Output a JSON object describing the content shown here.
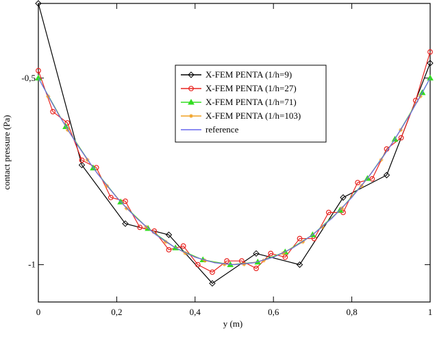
{
  "chart_data": {
    "type": "line",
    "xlabel": "y (m)",
    "ylabel": "contact pressure (Pa)",
    "xlim": [
      0,
      1
    ],
    "ylim": [
      -1.1,
      -0.3
    ],
    "xticks": [
      0,
      {
        "value": 0.2,
        "label": "0,2"
      },
      {
        "value": 0.4,
        "label": "0,4"
      },
      {
        "value": 0.6,
        "label": "0,6"
      },
      {
        "value": 0.8,
        "label": "0,8"
      },
      1
    ],
    "yticks": [
      {
        "value": -0.5,
        "label": "-0,5"
      },
      -1
    ],
    "legend": "upper center",
    "series": [
      {
        "name": "X-FEM PENTA (1/h=9)",
        "color": "#000000",
        "marker": "diamond",
        "x": [
          0,
          0.111,
          0.222,
          0.333,
          0.444,
          0.556,
          0.667,
          0.778,
          0.889,
          1
        ],
        "values": [
          -0.3,
          -0.733,
          -0.89,
          -0.92,
          -1.05,
          -0.97,
          -1.0,
          -0.82,
          -0.76,
          -0.46
        ]
      },
      {
        "name": "X-FEM PENTA (1/h=27)",
        "color": "#e8231f",
        "marker": "circle",
        "x": [
          0,
          0.037,
          0.074,
          0.111,
          0.148,
          0.185,
          0.222,
          0.259,
          0.296,
          0.333,
          0.37,
          0.407,
          0.444,
          0.481,
          0.519,
          0.556,
          0.593,
          0.63,
          0.667,
          0.704,
          0.741,
          0.778,
          0.815,
          0.852,
          0.889,
          0.926,
          0.963,
          1
        ],
        "values": [
          -0.48,
          -0.59,
          -0.62,
          -0.72,
          -0.74,
          -0.82,
          -0.83,
          -0.9,
          -0.91,
          -0.96,
          -0.95,
          -1.0,
          -1.02,
          -0.99,
          -0.99,
          -1.01,
          -0.97,
          -0.98,
          -0.93,
          -0.93,
          -0.86,
          -0.86,
          -0.78,
          -0.77,
          -0.69,
          -0.66,
          -0.56,
          -0.43
        ]
      },
      {
        "name": "X-FEM PENTA (1/h=71)",
        "color": "#33dd22",
        "marker": "triangle",
        "x": [
          0,
          0.07,
          0.14,
          0.21,
          0.28,
          0.35,
          0.42,
          0.49,
          0.56,
          0.63,
          0.7,
          0.77,
          0.84,
          0.91,
          0.98,
          1
        ],
        "values": [
          -0.5,
          -0.63,
          -0.741,
          -0.832,
          -0.903,
          -0.955,
          -0.987,
          -1.0,
          -0.993,
          -0.966,
          -0.92,
          -0.854,
          -0.769,
          -0.664,
          -0.539,
          -0.5
        ]
      },
      {
        "name": "X-FEM PENTA (1/h=103)",
        "color": "#f0a020",
        "marker": "star",
        "x": [
          0.025,
          0.075,
          0.125,
          0.175,
          0.225,
          0.275,
          0.325,
          0.375,
          0.425,
          0.475,
          0.525,
          0.575,
          0.625,
          0.675,
          0.725,
          0.775,
          0.825,
          0.875,
          0.925,
          0.975
        ],
        "values": [
          -0.549,
          -0.639,
          -0.719,
          -0.789,
          -0.849,
          -0.899,
          -0.939,
          -0.969,
          -0.989,
          -0.999,
          -0.999,
          -0.989,
          -0.969,
          -0.939,
          -0.899,
          -0.849,
          -0.789,
          -0.719,
          -0.639,
          -0.549
        ]
      },
      {
        "name": "reference",
        "color": "#6666ee",
        "marker": "none",
        "x": [
          0,
          0.05,
          0.1,
          0.15,
          0.2,
          0.25,
          0.3,
          0.35,
          0.4,
          0.45,
          0.5,
          0.55,
          0.6,
          0.65,
          0.7,
          0.75,
          0.8,
          0.85,
          0.9,
          0.95,
          1
        ],
        "values": [
          -0.5,
          -0.595,
          -0.68,
          -0.755,
          -0.82,
          -0.875,
          -0.92,
          -0.955,
          -0.98,
          -0.995,
          -1.0,
          -0.995,
          -0.98,
          -0.955,
          -0.92,
          -0.875,
          -0.82,
          -0.755,
          -0.68,
          -0.595,
          -0.5
        ]
      }
    ]
  }
}
